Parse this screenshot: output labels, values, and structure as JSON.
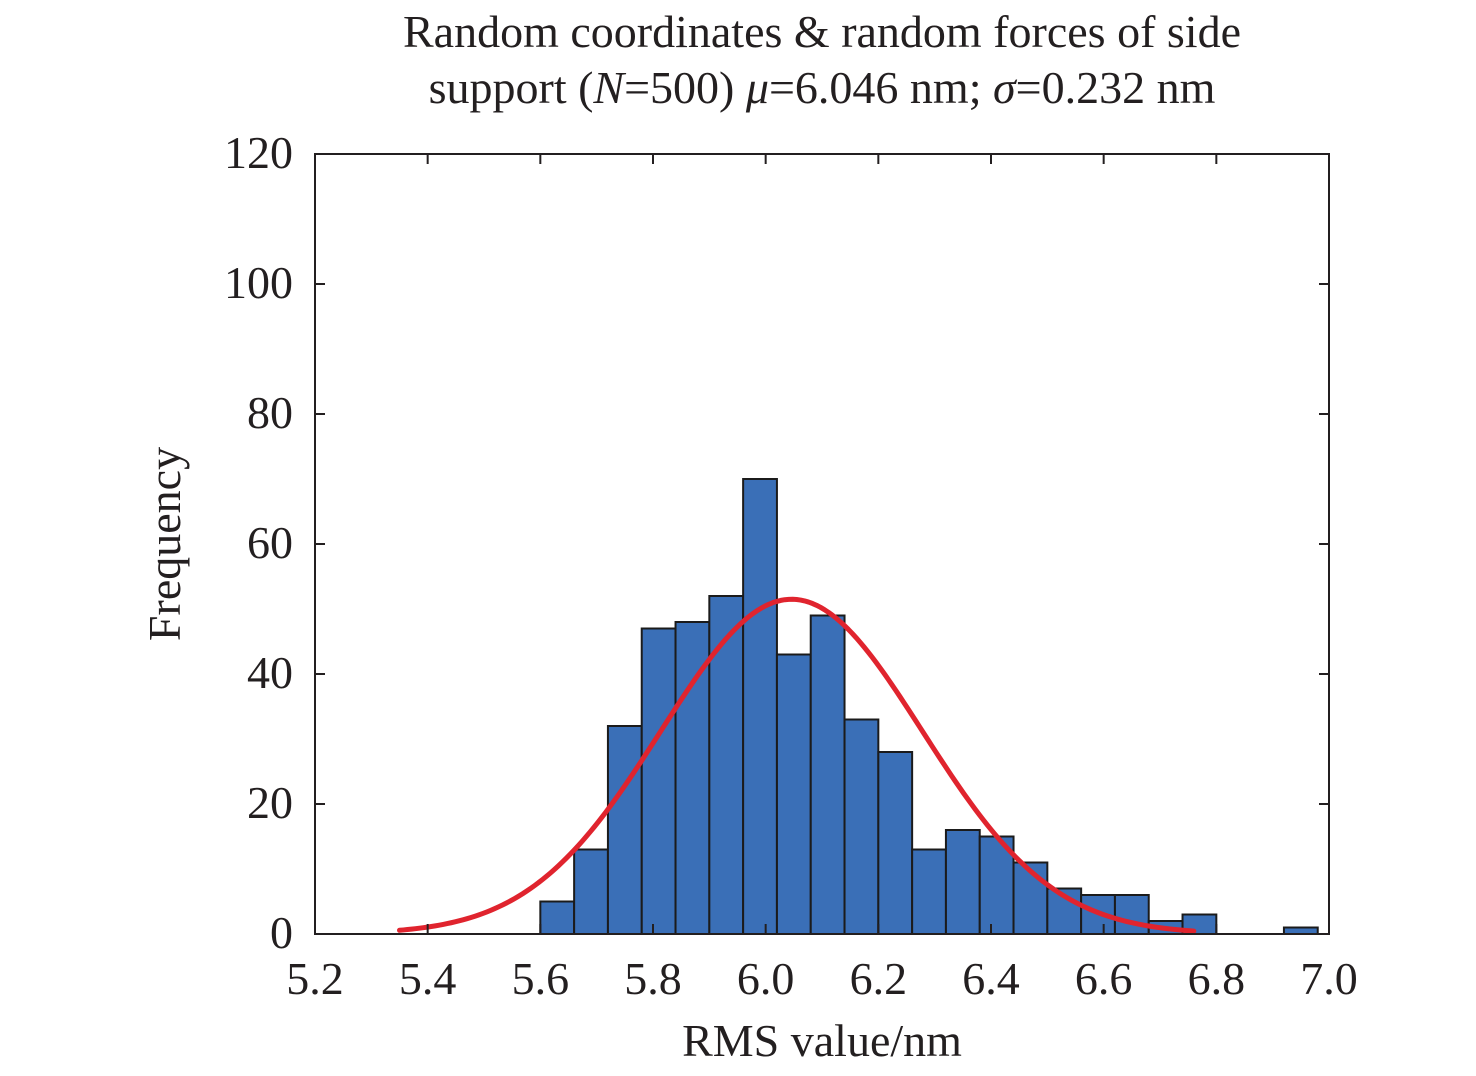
{
  "title": {
    "line1": "Random coordinates & random forces of side",
    "line2_prefix": "support (",
    "line2_n_symbol": "N",
    "line2_n_value": "=500) ",
    "line2_mu_symbol": "μ",
    "line2_mu_value": "=6.046 nm; ",
    "line2_sigma_symbol": "σ",
    "line2_sigma_value": "=0.232 nm"
  },
  "colors": {
    "bar_fill": "#3a6fb7",
    "bar_stroke": "#1b1b1b",
    "fit_curve": "#e0242e",
    "axis": "#231f20"
  },
  "chart_data": {
    "type": "bar",
    "histogram": true,
    "xlabel": "RMS value/nm",
    "ylabel": "Frequency",
    "xlim": [
      5.2,
      7.0
    ],
    "ylim": [
      0,
      120
    ],
    "xticks": [
      "5.2",
      "5.4",
      "5.6",
      "5.8",
      "6.0",
      "6.2",
      "6.4",
      "6.6",
      "6.8",
      "7.0"
    ],
    "yticks": [
      "0",
      "20",
      "40",
      "60",
      "80",
      "100",
      "120"
    ],
    "bins": [
      {
        "x0": 5.6,
        "x1": 5.66,
        "count": 5
      },
      {
        "x0": 5.66,
        "x1": 5.72,
        "count": 13
      },
      {
        "x0": 5.72,
        "x1": 5.78,
        "count": 32
      },
      {
        "x0": 5.78,
        "x1": 5.84,
        "count": 47
      },
      {
        "x0": 5.84,
        "x1": 5.9,
        "count": 48
      },
      {
        "x0": 5.9,
        "x1": 5.96,
        "count": 52
      },
      {
        "x0": 5.96,
        "x1": 6.02,
        "count": 70
      },
      {
        "x0": 6.02,
        "x1": 6.08,
        "count": 43
      },
      {
        "x0": 6.08,
        "x1": 6.14,
        "count": 49
      },
      {
        "x0": 6.14,
        "x1": 6.2,
        "count": 33
      },
      {
        "x0": 6.2,
        "x1": 6.26,
        "count": 28
      },
      {
        "x0": 6.26,
        "x1": 6.32,
        "count": 13
      },
      {
        "x0": 6.32,
        "x1": 6.38,
        "count": 16
      },
      {
        "x0": 6.38,
        "x1": 6.44,
        "count": 15
      },
      {
        "x0": 6.44,
        "x1": 6.5,
        "count": 11
      },
      {
        "x0": 6.5,
        "x1": 6.56,
        "count": 7
      },
      {
        "x0": 6.56,
        "x1": 6.62,
        "count": 6
      },
      {
        "x0": 6.62,
        "x1": 6.68,
        "count": 6
      },
      {
        "x0": 6.68,
        "x1": 6.74,
        "count": 2
      },
      {
        "x0": 6.74,
        "x1": 6.8,
        "count": 3
      },
      {
        "x0": 6.92,
        "x1": 6.98,
        "count": 1
      }
    ],
    "fit": {
      "type": "normal",
      "mu": 6.046,
      "sigma": 0.232,
      "peak": 51.5,
      "x_range": [
        5.35,
        6.76
      ]
    },
    "grid": false,
    "legend": "none"
  }
}
